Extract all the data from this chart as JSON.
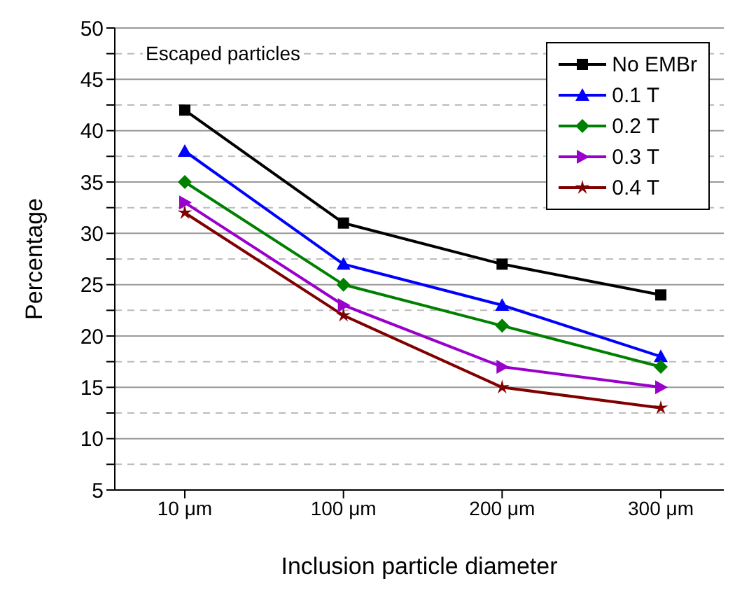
{
  "chart_data": {
    "type": "line",
    "xlabel": "Inclusion particle diameter",
    "ylabel": "Percentage",
    "annotations": [
      "Escaped particles"
    ],
    "categories": [
      "10 μm",
      "100 μm",
      "200 μm",
      "300 μm"
    ],
    "ylim": [
      5,
      50
    ],
    "yticks": [
      5,
      {
        "value": 7.5,
        "label": null
      },
      10,
      {
        "value": 12.5,
        "label": null
      },
      15,
      {
        "value": 17.5,
        "label": null
      },
      20,
      {
        "value": 22.5,
        "label": null
      },
      25,
      {
        "value": 27.5,
        "label": null
      },
      30,
      {
        "value": 32.5,
        "label": null
      },
      35,
      {
        "value": 37.5,
        "label": null
      },
      40,
      {
        "value": 42.5,
        "label": null
      },
      45,
      {
        "value": 47.5,
        "label": null
      },
      50
    ],
    "grid": "y",
    "legend": "top right",
    "line_style": "solid",
    "series": [
      {
        "name": "No EMBr",
        "color": "#000000",
        "marker": "square",
        "values": [
          42,
          31,
          27,
          24
        ]
      },
      {
        "name": "0.1 T",
        "color": "#0000ff",
        "marker": "triangle",
        "values": [
          38,
          27,
          23,
          18
        ]
      },
      {
        "name": "0.2 T",
        "color": "#008000",
        "marker": "diamond",
        "values": [
          35,
          25,
          21,
          17
        ]
      },
      {
        "name": "0.3 T",
        "color": "#9900cc",
        "marker": "triangle-right",
        "values": [
          33,
          23,
          17,
          15
        ]
      },
      {
        "name": "0.4 T",
        "color": "#800000",
        "marker": "star",
        "values": [
          32,
          22,
          15,
          13
        ]
      }
    ]
  }
}
